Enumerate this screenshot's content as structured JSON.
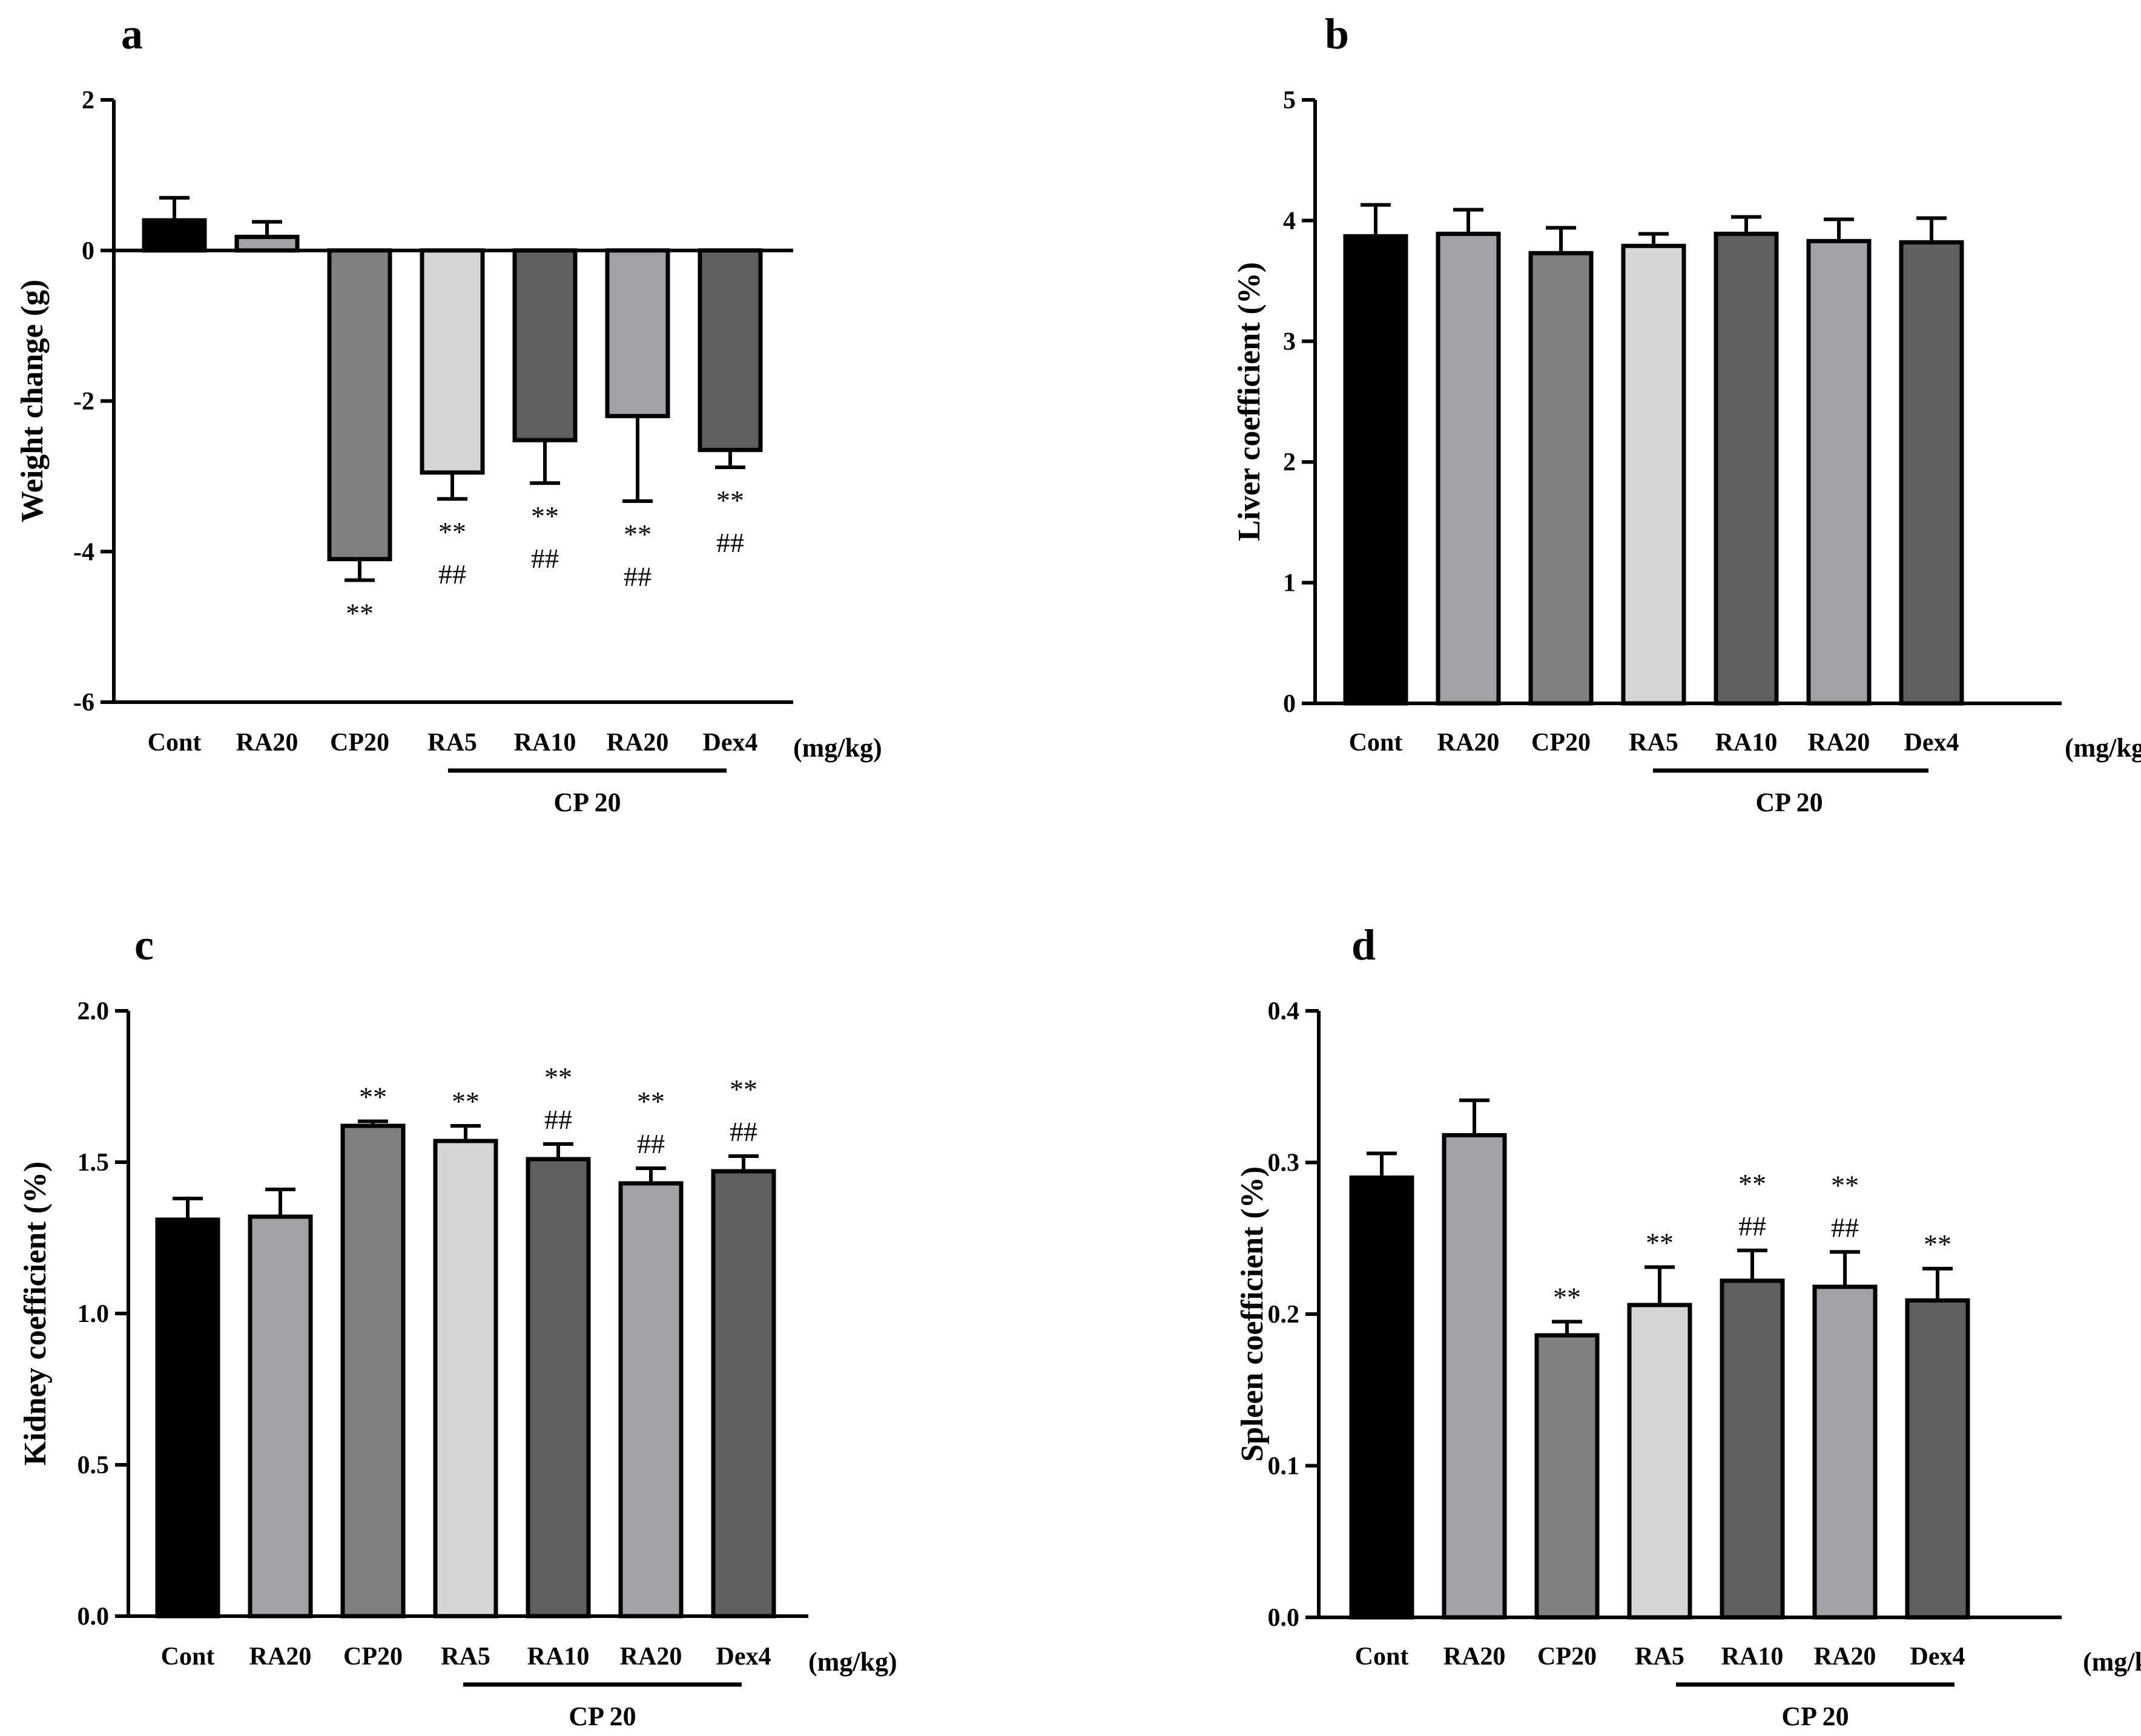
{
  "colors": {
    "Cont": "#000000",
    "RA20": "#a3a1a7",
    "CP20": "#808080",
    "RA5": "#d6d6d6",
    "RA10": "#5f5f5f",
    "RA20_CP": "#a3a1a7",
    "Dex4": "#5f5f5f",
    "axis": "#000000"
  },
  "chart_data": [
    {
      "panel": "a",
      "type": "bar",
      "title": "",
      "xlabel": "",
      "ylabel": "Weight change (g)",
      "unit_label": "(mg/kg)",
      "group_label": "CP 20",
      "categories": [
        "Cont",
        "RA20",
        "CP20",
        "RA5",
        "RA10",
        "RA20",
        "Dex4"
      ],
      "values": [
        0.4,
        0.18,
        -4.1,
        -2.95,
        -2.52,
        -2.2,
        -2.65
      ],
      "errors": [
        0.3,
        0.2,
        0.28,
        0.35,
        0.57,
        1.13,
        0.23
      ],
      "significance": [
        [],
        [],
        [
          "**"
        ],
        [
          "**",
          "##"
        ],
        [
          "**",
          "##"
        ],
        [
          "**",
          "##"
        ],
        [
          "**",
          "##"
        ]
      ],
      "ylim": [
        -6,
        2
      ],
      "yticks": [
        -6,
        -4,
        -2,
        0,
        2
      ],
      "ytick_labels": [
        "-6",
        "-4",
        "-2",
        "0",
        "2"
      ]
    },
    {
      "panel": "b",
      "type": "bar",
      "title": "",
      "xlabel": "",
      "ylabel": "Liver coefficient (%)",
      "unit_label": "(mg/kg)",
      "group_label": "CP 20",
      "categories": [
        "Cont",
        "RA20",
        "CP20",
        "RA5",
        "RA10",
        "RA20",
        "Dex4"
      ],
      "values": [
        3.87,
        3.89,
        3.73,
        3.79,
        3.89,
        3.83,
        3.82
      ],
      "errors": [
        0.26,
        0.2,
        0.21,
        0.1,
        0.14,
        0.18,
        0.2
      ],
      "significance": [
        [],
        [],
        [],
        [],
        [],
        [],
        []
      ],
      "ylim": [
        0,
        5
      ],
      "yticks": [
        0,
        1,
        2,
        3,
        4,
        5
      ],
      "ytick_labels": [
        "0",
        "1",
        "2",
        "3",
        "4",
        "5"
      ]
    },
    {
      "panel": "c",
      "type": "bar",
      "title": "",
      "xlabel": "",
      "ylabel": "Kidney coefficient (%)",
      "unit_label": "(mg/kg)",
      "group_label": "CP 20",
      "categories": [
        "Cont",
        "RA20",
        "CP20",
        "RA5",
        "RA10",
        "RA20",
        "Dex4"
      ],
      "values": [
        1.31,
        1.32,
        1.62,
        1.57,
        1.51,
        1.43,
        1.47
      ],
      "errors": [
        0.07,
        0.09,
        0.015,
        0.05,
        0.05,
        0.05,
        0.05
      ],
      "significance": [
        [],
        [],
        [
          "**"
        ],
        [
          "**"
        ],
        [
          "**",
          "##"
        ],
        [
          "**",
          "##"
        ],
        [
          "**",
          "##"
        ]
      ],
      "ylim": [
        0,
        2
      ],
      "yticks": [
        0,
        0.5,
        1,
        1.5,
        2
      ],
      "ytick_labels": [
        "0.0",
        "0.5",
        "1.0",
        "1.5",
        "2.0"
      ]
    },
    {
      "panel": "d",
      "type": "bar",
      "title": "",
      "xlabel": "",
      "ylabel": "Spleen coefficient (%)",
      "unit_label": "(mg/kg)",
      "group_label": "CP 20",
      "categories": [
        "Cont",
        "RA20",
        "CP20",
        "RA5",
        "RA10",
        "RA20",
        "Dex4"
      ],
      "values": [
        0.29,
        0.318,
        0.186,
        0.206,
        0.222,
        0.218,
        0.209
      ],
      "errors": [
        0.016,
        0.023,
        0.009,
        0.025,
        0.02,
        0.023,
        0.021
      ],
      "significance": [
        [],
        [],
        [
          "**"
        ],
        [
          "**"
        ],
        [
          "**",
          "##"
        ],
        [
          "**",
          "##"
        ],
        [
          "**"
        ]
      ],
      "ylim": [
        0,
        0.4
      ],
      "yticks": [
        0,
        0.1,
        0.2,
        0.3,
        0.4
      ],
      "ytick_labels": [
        "0.0",
        "0.1",
        "0.2",
        "0.3",
        "0.4"
      ]
    }
  ]
}
